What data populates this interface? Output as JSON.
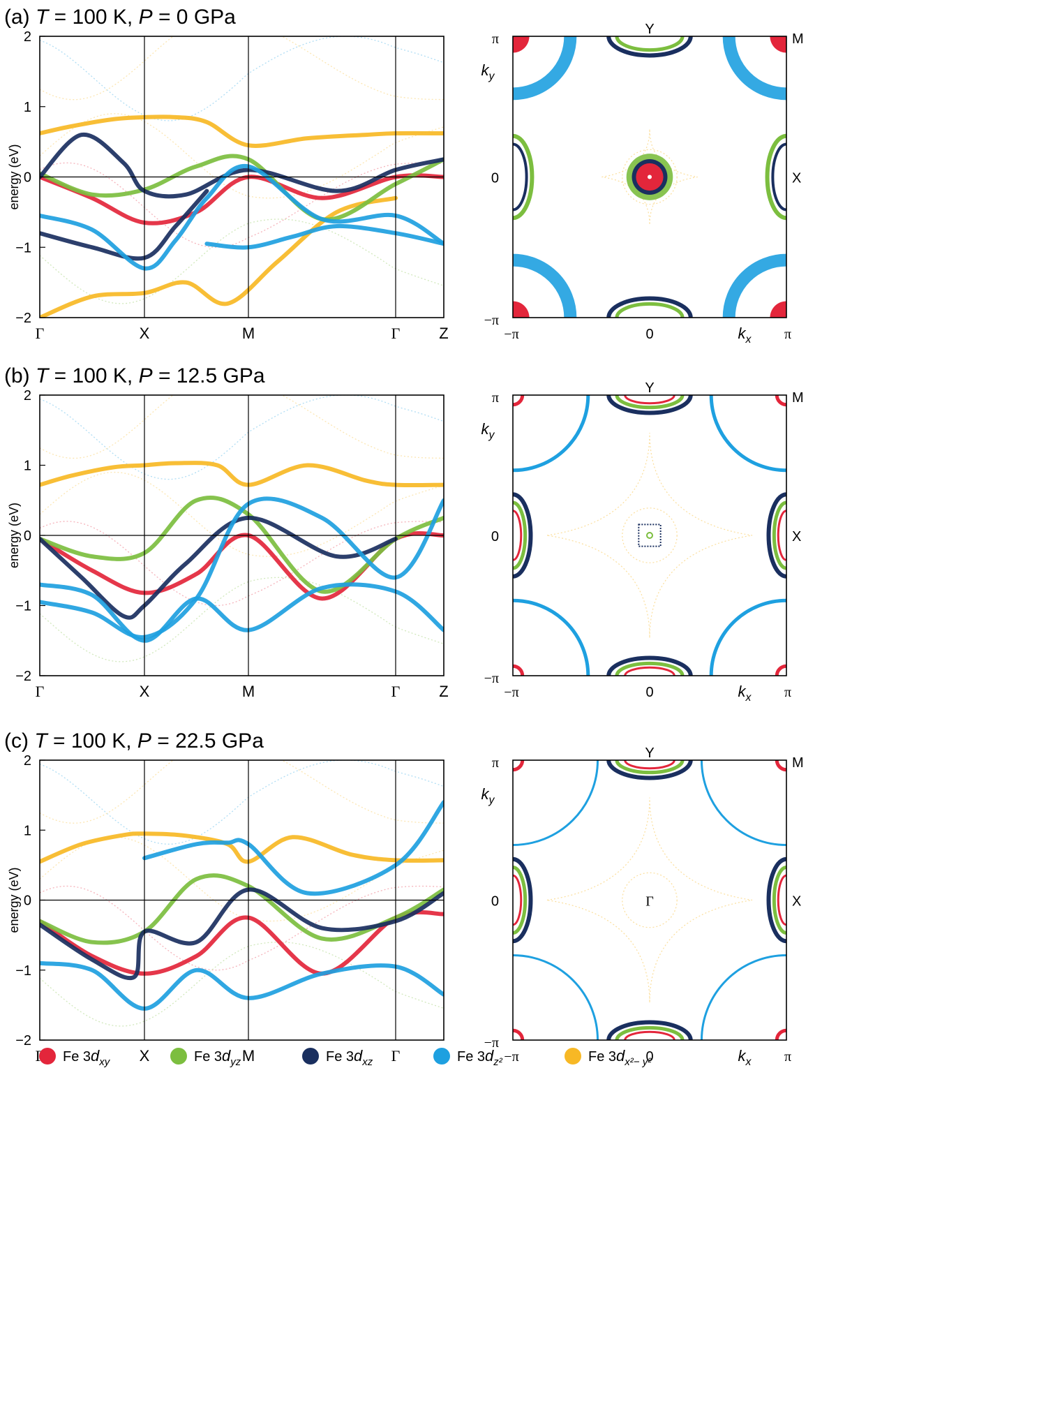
{
  "colors": {
    "xy": "#e3263b",
    "yz": "#7cbe3f",
    "xz": "#1a2f5f",
    "z2": "#1ea0e0",
    "x2y2": "#f7b825",
    "axis": "#000000"
  },
  "band_axes": {
    "ylabel": "energy (eV)",
    "ylim": [
      -2,
      2
    ],
    "yticks": [
      "2",
      "1",
      "0",
      "−1",
      "−2"
    ],
    "kpoint_labels": [
      "Γ",
      "X",
      "M",
      "Γ",
      "Z"
    ]
  },
  "fs_axes": {
    "left_tick": "−π",
    "mid_tick": "0",
    "right_tick": "π",
    "top_tick": "π",
    "bottom_tick": "−π",
    "ky_label": "k",
    "ky_sub": "y",
    "kx_label": "k",
    "kx_sub": "x",
    "label_Y": "Y",
    "label_M": "M",
    "label_X": "X",
    "label_Gamma": "Γ"
  },
  "panels": [
    {
      "tag": "(a)",
      "T_sym": "T",
      "T_val": " = 100 K, ",
      "P_sym": "P",
      "P_val": " = 0 GPa"
    },
    {
      "tag": "(b)",
      "T_sym": "T",
      "T_val": " = 100 K, ",
      "P_sym": "P",
      "P_val": " = 12.5 GPa"
    },
    {
      "tag": "(c)",
      "T_sym": "T",
      "T_val": " = 100 K, ",
      "P_sym": "P",
      "P_val": " = 22.5 GPa"
    }
  ],
  "legend": [
    {
      "prefix": "Fe 3",
      "d": "d",
      "sub": "xy",
      "color_key": "xy"
    },
    {
      "prefix": "Fe 3",
      "d": "d",
      "sub": "yz",
      "color_key": "yz"
    },
    {
      "prefix": "Fe 3",
      "d": "d",
      "sub": "xz",
      "color_key": "xz"
    },
    {
      "prefix": "Fe 3",
      "d": "d",
      "sub": "z²",
      "color_key": "z2"
    },
    {
      "prefix": "Fe 3",
      "d": "d",
      "sub": "x²− y²",
      "color_key": "x2y2"
    }
  ],
  "chart_data": [
    {
      "type": "line",
      "panel": "(a)",
      "ylim": [
        -2,
        2
      ],
      "x_kpath": [
        0,
        1,
        2,
        3,
        3.2
      ],
      "series": [
        {
          "color_key": "x2y2",
          "x": [
            0,
            0.3,
            0.7,
            1.0,
            1.3,
            1.6,
            2.0,
            2.4,
            2.8,
            3.0,
            3.2
          ],
          "y": [
            0.62,
            0.72,
            0.82,
            0.85,
            0.85,
            0.78,
            0.45,
            0.55,
            0.6,
            0.62,
            0.62
          ]
        },
        {
          "color_key": "x2y2",
          "x": [
            0,
            0.5,
            1.0,
            1.4,
            1.8,
            2.2,
            2.6,
            3.0
          ],
          "y": [
            -2.0,
            -1.7,
            -1.65,
            -1.5,
            -1.8,
            -1.2,
            -0.5,
            -0.3
          ]
        },
        {
          "color_key": "xy",
          "x": [
            0,
            0.5,
            1.0,
            1.5,
            2.0,
            2.5,
            3.0,
            3.2
          ],
          "y": [
            0.0,
            -0.3,
            -0.65,
            -0.5,
            0.0,
            -0.3,
            0.0,
            0.0
          ]
        },
        {
          "color_key": "yz",
          "x": [
            0,
            0.5,
            1.0,
            1.5,
            2.0,
            2.5,
            3.0,
            3.2
          ],
          "y": [
            0.05,
            -0.25,
            -0.18,
            0.15,
            0.25,
            -0.6,
            -0.1,
            0.25
          ]
        },
        {
          "color_key": "xz",
          "x": [
            0,
            0.4,
            0.8,
            1.0,
            1.4,
            2.0,
            2.6,
            3.0,
            3.2
          ],
          "y": [
            0.0,
            0.6,
            0.2,
            -0.2,
            -0.25,
            0.1,
            -0.2,
            0.1,
            0.25
          ]
        },
        {
          "color_key": "xz",
          "x": [
            0,
            0.5,
            1.0,
            1.3,
            1.6
          ],
          "y": [
            -0.8,
            -1.0,
            -1.15,
            -0.7,
            -0.2
          ]
        },
        {
          "color_key": "z2",
          "x": [
            0,
            0.5,
            1.0,
            1.3,
            1.6,
            2.0,
            2.5,
            3.0,
            3.2
          ],
          "y": [
            -0.55,
            -0.75,
            -1.3,
            -0.9,
            -0.3,
            0.15,
            -0.6,
            -0.55,
            -0.95
          ]
        },
        {
          "color_key": "z2",
          "x": [
            1.6,
            2.0,
            2.3,
            2.6,
            3.0,
            3.2
          ],
          "y": [
            -0.95,
            -1.0,
            -0.85,
            -0.7,
            -0.8,
            -0.95
          ]
        }
      ]
    },
    {
      "type": "line",
      "panel": "(b)",
      "ylim": [
        -2,
        2
      ],
      "x_kpath": [
        0,
        1,
        2,
        3,
        3.2
      ],
      "series": [
        {
          "color_key": "x2y2",
          "x": [
            0,
            0.3,
            0.7,
            1.0,
            1.3,
            1.7,
            2.0,
            2.4,
            2.8,
            3.0,
            3.2
          ],
          "y": [
            0.72,
            0.85,
            0.97,
            1.0,
            1.03,
            1.0,
            0.72,
            1.0,
            0.78,
            0.72,
            0.72
          ]
        },
        {
          "color_key": "xy",
          "x": [
            0,
            0.5,
            1.0,
            1.5,
            2.0,
            2.5,
            3.0,
            3.2
          ],
          "y": [
            -0.05,
            -0.5,
            -0.82,
            -0.55,
            0.0,
            -0.9,
            -0.05,
            0.0
          ]
        },
        {
          "color_key": "yz",
          "x": [
            0,
            0.5,
            1.0,
            1.5,
            2.0,
            2.5,
            3.0,
            3.2
          ],
          "y": [
            -0.05,
            -0.3,
            -0.25,
            0.5,
            0.3,
            -0.8,
            -0.05,
            0.25
          ]
        },
        {
          "color_key": "xz",
          "x": [
            0,
            0.4,
            0.8,
            1.0,
            1.4,
            2.0,
            2.6,
            3.0
          ],
          "y": [
            -0.05,
            -0.6,
            -1.15,
            -1.0,
            -0.4,
            0.25,
            -0.3,
            -0.05
          ]
        },
        {
          "color_key": "z2",
          "x": [
            0,
            0.5,
            1.0,
            1.5,
            2.0,
            2.5,
            3.0,
            3.2
          ],
          "y": [
            -0.7,
            -0.85,
            -1.5,
            -0.9,
            -1.35,
            -0.75,
            -0.8,
            -1.35
          ]
        },
        {
          "color_key": "z2",
          "x": [
            0,
            0.5,
            1.0,
            1.5,
            2.0,
            2.5,
            3.0,
            3.2
          ],
          "y": [
            -0.95,
            -1.1,
            -1.45,
            -0.9,
            0.45,
            0.25,
            -0.6,
            0.5
          ]
        }
      ]
    },
    {
      "type": "line",
      "panel": "(c)",
      "ylim": [
        -2,
        2
      ],
      "x_kpath": [
        0,
        1,
        2,
        3,
        3.2
      ],
      "series": [
        {
          "color_key": "x2y2",
          "x": [
            0,
            0.4,
            0.8,
            1.0,
            1.4,
            1.8,
            2.0,
            2.3,
            2.7,
            3.0,
            3.2
          ],
          "y": [
            0.55,
            0.8,
            0.93,
            0.95,
            0.92,
            0.8,
            0.55,
            0.9,
            0.65,
            0.57,
            0.57
          ]
        },
        {
          "color_key": "xy",
          "x": [
            0,
            0.5,
            1.0,
            1.5,
            2.0,
            2.5,
            3.0,
            3.2
          ],
          "y": [
            -0.3,
            -0.8,
            -1.05,
            -0.8,
            -0.25,
            -1.05,
            -0.25,
            -0.2
          ]
        },
        {
          "color_key": "yz",
          "x": [
            0,
            0.5,
            1.0,
            1.5,
            2.0,
            2.5,
            3.0,
            3.2
          ],
          "y": [
            -0.3,
            -0.6,
            -0.45,
            0.3,
            0.2,
            -0.55,
            -0.25,
            0.15
          ]
        },
        {
          "color_key": "xz",
          "x": [
            0,
            0.5,
            0.9,
            1.0,
            1.5,
            2.0,
            2.5,
            3.0,
            3.2
          ],
          "y": [
            -0.35,
            -0.85,
            -1.1,
            -0.45,
            -0.6,
            0.15,
            -0.4,
            -0.3,
            0.1
          ]
        },
        {
          "color_key": "z2",
          "x": [
            0,
            0.5,
            1.0,
            1.5,
            2.0,
            2.5,
            3.0,
            3.2
          ],
          "y": [
            -0.9,
            -1.0,
            -1.55,
            -1.0,
            -1.4,
            -1.05,
            -0.95,
            -1.35
          ]
        },
        {
          "color_key": "z2",
          "x": [
            1.0,
            1.5,
            1.8,
            2.0,
            2.4,
            3.0,
            3.2
          ],
          "y": [
            0.6,
            0.8,
            0.82,
            0.8,
            0.1,
            0.5,
            1.4
          ]
        }
      ]
    }
  ]
}
